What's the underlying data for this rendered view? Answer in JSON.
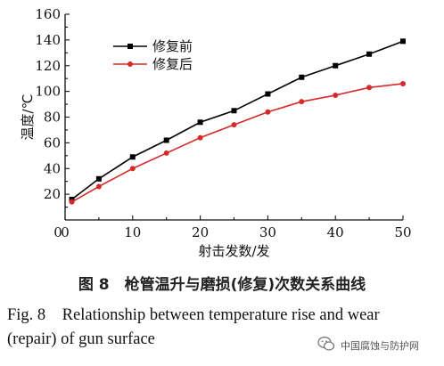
{
  "chart_data": {
    "type": "line",
    "xlabel": "射击发数/发",
    "ylabel": "温度/℃",
    "xlim": [
      0,
      50
    ],
    "ylim": [
      0,
      160
    ],
    "x_ticks": [
      0,
      10,
      20,
      30,
      40,
      50
    ],
    "y_ticks": [
      20,
      40,
      60,
      80,
      100,
      120,
      140,
      160
    ],
    "grid": false,
    "legend_position": "top-left",
    "series": [
      {
        "name": "修复前",
        "color": "#000000",
        "marker": "square",
        "x": [
          1,
          5,
          10,
          15,
          20,
          25,
          30,
          35,
          40,
          45,
          50
        ],
        "y": [
          16,
          32,
          49,
          62,
          76,
          85,
          98,
          111,
          120,
          129,
          139
        ]
      },
      {
        "name": "修复后",
        "color": "#d42a2a",
        "marker": "circle",
        "x": [
          1,
          5,
          10,
          15,
          20,
          25,
          30,
          35,
          40,
          45,
          50
        ],
        "y": [
          14,
          26,
          40,
          52,
          64,
          74,
          84,
          92,
          97,
          103,
          106
        ]
      }
    ]
  },
  "captions": {
    "cn": "图 8　枪管温升与磨损(修复)次数关系曲线",
    "en_line1": "Fig. 8　Relationship between temperature rise and wear",
    "en_line2": "(repair) of gun surface"
  },
  "watermark": {
    "text": "中国腐蚀与防护网",
    "icon": "wechat-icon"
  }
}
